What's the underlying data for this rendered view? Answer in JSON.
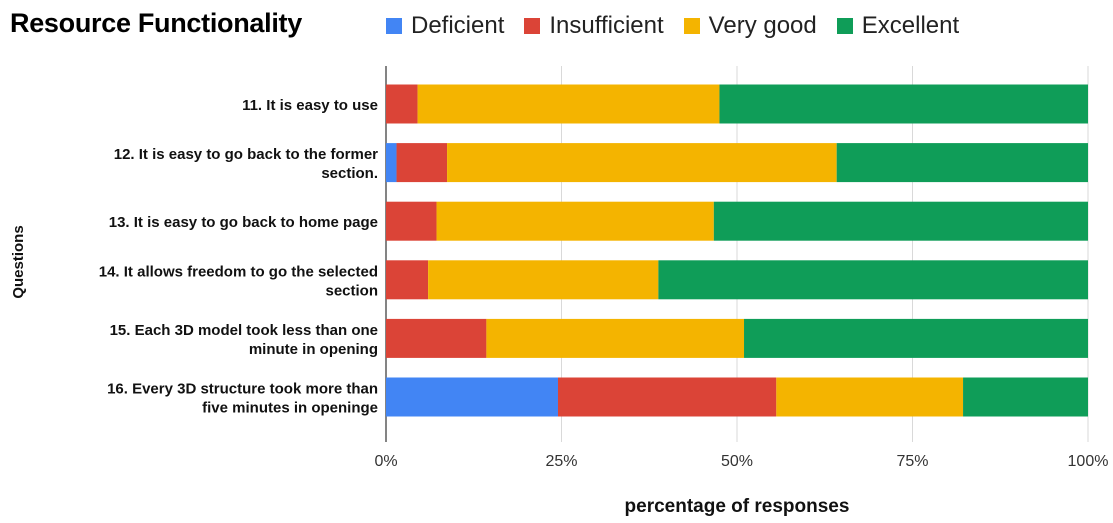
{
  "chart_data": {
    "type": "bar",
    "orientation": "horizontal",
    "stacked": true,
    "title": "Resource Functionality",
    "xlabel": "percentage of responses",
    "ylabel": "Questions",
    "xlim": [
      0,
      100
    ],
    "x_ticks": [
      "0%",
      "25%",
      "50%",
      "75%",
      "100%"
    ],
    "grid": true,
    "legend_position": "top",
    "categories": [
      "11. It is easy to use",
      "12. It is easy to go back to the former section.",
      "13. It is easy to go back to home page",
      "14. It allows freedom to go the selected section",
      "15. Each 3D model took less than one minute in opening",
      "16. Every 3D  structure took more than five minutes in openinge"
    ],
    "category_lines": [
      [
        "11. It is easy to use"
      ],
      [
        "12. It is easy to go back to the former",
        "section."
      ],
      [
        "13. It is easy to go back to home page"
      ],
      [
        "14. It allows freedom to go the selected",
        "section"
      ],
      [
        "15. Each 3D model took less than one",
        "minute in opening"
      ],
      [
        "16. Every 3D  structure took more than",
        "five minutes in openinge"
      ]
    ],
    "series": [
      {
        "name": "Deficient",
        "color": "#4285F4",
        "values": [
          0,
          1.5,
          0,
          0,
          0,
          24.5
        ]
      },
      {
        "name": "Insufficient",
        "color": "#DB4437",
        "values": [
          4.5,
          7.2,
          7.2,
          6.0,
          14.3,
          31.1
        ]
      },
      {
        "name": "Very good",
        "color": "#F4B400",
        "values": [
          43.0,
          55.5,
          39.5,
          32.8,
          36.7,
          26.6
        ]
      },
      {
        "name": "Excellent",
        "color": "#0F9D58",
        "values": [
          52.5,
          35.8,
          53.3,
          61.2,
          49.0,
          17.8
        ]
      }
    ]
  }
}
